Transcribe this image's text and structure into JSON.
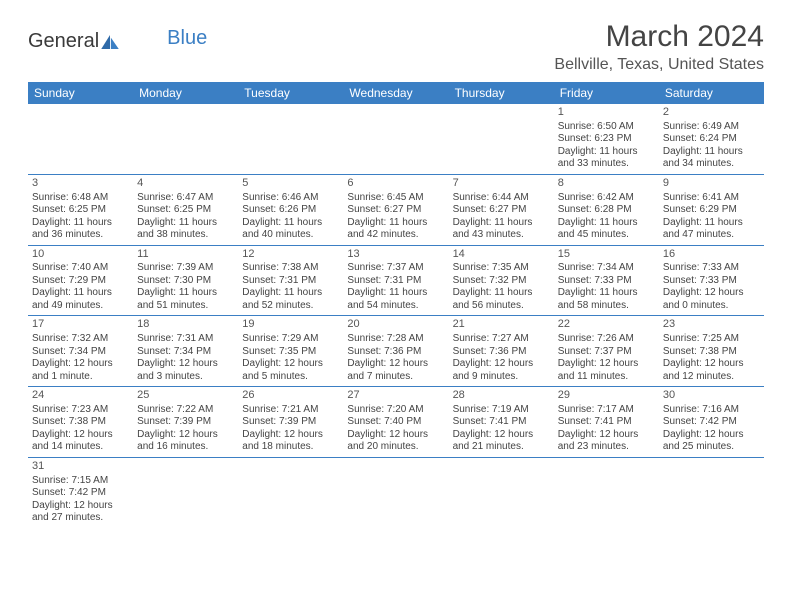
{
  "logo": {
    "text1": "General",
    "text2": "Blue"
  },
  "title": "March 2024",
  "location": "Bellville, Texas, United States",
  "colors": {
    "header_bg": "#3b7fc4",
    "header_fg": "#ffffff",
    "border": "#3b7fc4",
    "text": "#444444"
  },
  "weekdays": [
    "Sunday",
    "Monday",
    "Tuesday",
    "Wednesday",
    "Thursday",
    "Friday",
    "Saturday"
  ],
  "weeks": [
    [
      null,
      null,
      null,
      null,
      null,
      {
        "n": "1",
        "sr": "Sunrise: 6:50 AM",
        "ss": "Sunset: 6:23 PM",
        "d1": "Daylight: 11 hours",
        "d2": "and 33 minutes."
      },
      {
        "n": "2",
        "sr": "Sunrise: 6:49 AM",
        "ss": "Sunset: 6:24 PM",
        "d1": "Daylight: 11 hours",
        "d2": "and 34 minutes."
      }
    ],
    [
      {
        "n": "3",
        "sr": "Sunrise: 6:48 AM",
        "ss": "Sunset: 6:25 PM",
        "d1": "Daylight: 11 hours",
        "d2": "and 36 minutes."
      },
      {
        "n": "4",
        "sr": "Sunrise: 6:47 AM",
        "ss": "Sunset: 6:25 PM",
        "d1": "Daylight: 11 hours",
        "d2": "and 38 minutes."
      },
      {
        "n": "5",
        "sr": "Sunrise: 6:46 AM",
        "ss": "Sunset: 6:26 PM",
        "d1": "Daylight: 11 hours",
        "d2": "and 40 minutes."
      },
      {
        "n": "6",
        "sr": "Sunrise: 6:45 AM",
        "ss": "Sunset: 6:27 PM",
        "d1": "Daylight: 11 hours",
        "d2": "and 42 minutes."
      },
      {
        "n": "7",
        "sr": "Sunrise: 6:44 AM",
        "ss": "Sunset: 6:27 PM",
        "d1": "Daylight: 11 hours",
        "d2": "and 43 minutes."
      },
      {
        "n": "8",
        "sr": "Sunrise: 6:42 AM",
        "ss": "Sunset: 6:28 PM",
        "d1": "Daylight: 11 hours",
        "d2": "and 45 minutes."
      },
      {
        "n": "9",
        "sr": "Sunrise: 6:41 AM",
        "ss": "Sunset: 6:29 PM",
        "d1": "Daylight: 11 hours",
        "d2": "and 47 minutes."
      }
    ],
    [
      {
        "n": "10",
        "sr": "Sunrise: 7:40 AM",
        "ss": "Sunset: 7:29 PM",
        "d1": "Daylight: 11 hours",
        "d2": "and 49 minutes."
      },
      {
        "n": "11",
        "sr": "Sunrise: 7:39 AM",
        "ss": "Sunset: 7:30 PM",
        "d1": "Daylight: 11 hours",
        "d2": "and 51 minutes."
      },
      {
        "n": "12",
        "sr": "Sunrise: 7:38 AM",
        "ss": "Sunset: 7:31 PM",
        "d1": "Daylight: 11 hours",
        "d2": "and 52 minutes."
      },
      {
        "n": "13",
        "sr": "Sunrise: 7:37 AM",
        "ss": "Sunset: 7:31 PM",
        "d1": "Daylight: 11 hours",
        "d2": "and 54 minutes."
      },
      {
        "n": "14",
        "sr": "Sunrise: 7:35 AM",
        "ss": "Sunset: 7:32 PM",
        "d1": "Daylight: 11 hours",
        "d2": "and 56 minutes."
      },
      {
        "n": "15",
        "sr": "Sunrise: 7:34 AM",
        "ss": "Sunset: 7:33 PM",
        "d1": "Daylight: 11 hours",
        "d2": "and 58 minutes."
      },
      {
        "n": "16",
        "sr": "Sunrise: 7:33 AM",
        "ss": "Sunset: 7:33 PM",
        "d1": "Daylight: 12 hours",
        "d2": "and 0 minutes."
      }
    ],
    [
      {
        "n": "17",
        "sr": "Sunrise: 7:32 AM",
        "ss": "Sunset: 7:34 PM",
        "d1": "Daylight: 12 hours",
        "d2": "and 1 minute."
      },
      {
        "n": "18",
        "sr": "Sunrise: 7:31 AM",
        "ss": "Sunset: 7:34 PM",
        "d1": "Daylight: 12 hours",
        "d2": "and 3 minutes."
      },
      {
        "n": "19",
        "sr": "Sunrise: 7:29 AM",
        "ss": "Sunset: 7:35 PM",
        "d1": "Daylight: 12 hours",
        "d2": "and 5 minutes."
      },
      {
        "n": "20",
        "sr": "Sunrise: 7:28 AM",
        "ss": "Sunset: 7:36 PM",
        "d1": "Daylight: 12 hours",
        "d2": "and 7 minutes."
      },
      {
        "n": "21",
        "sr": "Sunrise: 7:27 AM",
        "ss": "Sunset: 7:36 PM",
        "d1": "Daylight: 12 hours",
        "d2": "and 9 minutes."
      },
      {
        "n": "22",
        "sr": "Sunrise: 7:26 AM",
        "ss": "Sunset: 7:37 PM",
        "d1": "Daylight: 12 hours",
        "d2": "and 11 minutes."
      },
      {
        "n": "23",
        "sr": "Sunrise: 7:25 AM",
        "ss": "Sunset: 7:38 PM",
        "d1": "Daylight: 12 hours",
        "d2": "and 12 minutes."
      }
    ],
    [
      {
        "n": "24",
        "sr": "Sunrise: 7:23 AM",
        "ss": "Sunset: 7:38 PM",
        "d1": "Daylight: 12 hours",
        "d2": "and 14 minutes."
      },
      {
        "n": "25",
        "sr": "Sunrise: 7:22 AM",
        "ss": "Sunset: 7:39 PM",
        "d1": "Daylight: 12 hours",
        "d2": "and 16 minutes."
      },
      {
        "n": "26",
        "sr": "Sunrise: 7:21 AM",
        "ss": "Sunset: 7:39 PM",
        "d1": "Daylight: 12 hours",
        "d2": "and 18 minutes."
      },
      {
        "n": "27",
        "sr": "Sunrise: 7:20 AM",
        "ss": "Sunset: 7:40 PM",
        "d1": "Daylight: 12 hours",
        "d2": "and 20 minutes."
      },
      {
        "n": "28",
        "sr": "Sunrise: 7:19 AM",
        "ss": "Sunset: 7:41 PM",
        "d1": "Daylight: 12 hours",
        "d2": "and 21 minutes."
      },
      {
        "n": "29",
        "sr": "Sunrise: 7:17 AM",
        "ss": "Sunset: 7:41 PM",
        "d1": "Daylight: 12 hours",
        "d2": "and 23 minutes."
      },
      {
        "n": "30",
        "sr": "Sunrise: 7:16 AM",
        "ss": "Sunset: 7:42 PM",
        "d1": "Daylight: 12 hours",
        "d2": "and 25 minutes."
      }
    ],
    [
      {
        "n": "31",
        "sr": "Sunrise: 7:15 AM",
        "ss": "Sunset: 7:42 PM",
        "d1": "Daylight: 12 hours",
        "d2": "and 27 minutes."
      },
      null,
      null,
      null,
      null,
      null,
      null
    ]
  ]
}
